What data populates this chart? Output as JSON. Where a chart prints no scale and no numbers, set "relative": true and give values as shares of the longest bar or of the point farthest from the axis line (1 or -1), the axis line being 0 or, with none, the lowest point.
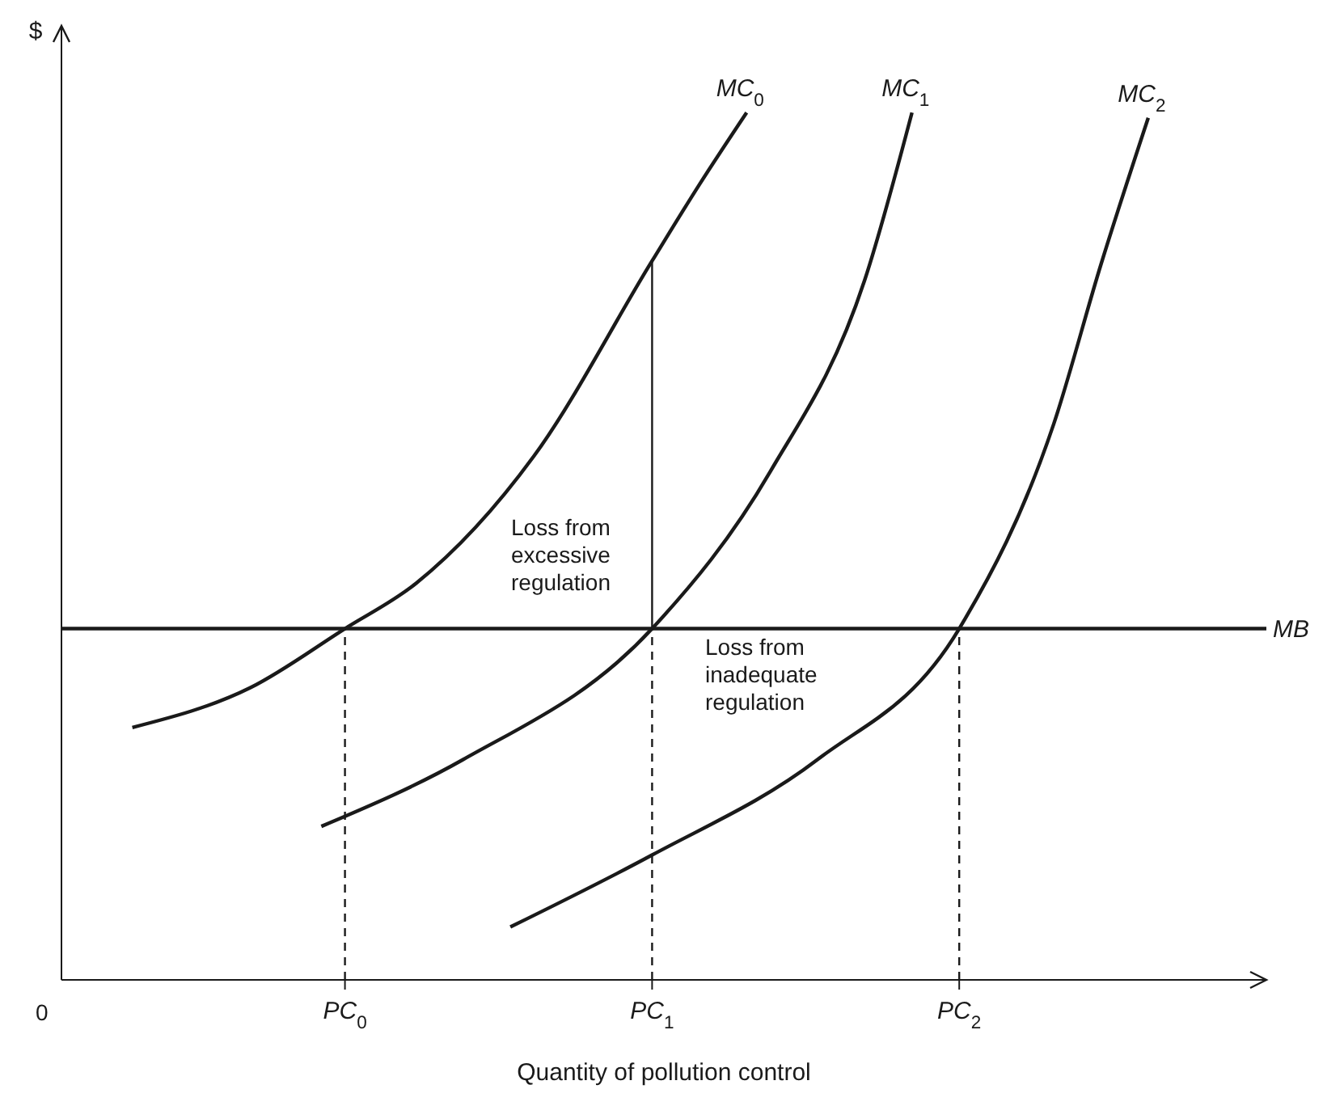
{
  "chart_data": {
    "type": "line",
    "relative": true,
    "xlabel": "Quantity of pollution control",
    "ylabel": "$",
    "marker": "none",
    "categories": [
      null,
      null,
      null,
      null,
      null,
      null,
      null,
      null,
      null,
      null,
      null,
      null,
      "PC$_{0}$",
      null,
      null,
      null,
      null,
      null,
      null,
      null,
      null,
      null,
      null,
      null,
      null,
      "PC$_{1}$",
      null,
      null,
      null,
      null,
      null,
      null,
      null,
      null,
      null,
      null,
      null,
      null,
      "PC$_{2}$",
      null,
      null,
      null,
      null,
      null,
      null,
      null,
      null,
      null,
      null,
      null,
      null,
      null
    ],
    "series": [
      {
        "name": "MC$_{0}$",
        "color": "#1a1a1a",
        "values": [
          null,
          null,
          null,
          0.291,
          null,
          null,
          null,
          null,
          0.337,
          null,
          null,
          null,
          0.405,
          null,
          null,
          0.457,
          null,
          null,
          null,
          null,
          0.604,
          null,
          null,
          null,
          null,
          0.829,
          null,
          0.917,
          null,
          1,
          null,
          null,
          null,
          null,
          null,
          null,
          null,
          null,
          null,
          null,
          null,
          null,
          null,
          null,
          null,
          null,
          null,
          null,
          null,
          null,
          null,
          null
        ]
      },
      {
        "name": "MC$_{1}$",
        "color": "#1a1a1a",
        "values": [
          null,
          null,
          null,
          null,
          null,
          null,
          null,
          null,
          null,
          null,
          null,
          0.177,
          null,
          null,
          null,
          null,
          null,
          0.254,
          null,
          null,
          null,
          null,
          null,
          null,
          null,
          0.405,
          null,
          null,
          null,
          null,
          0.586,
          null,
          null,
          null,
          0.807,
          null,
          1,
          null,
          null,
          null,
          null,
          null,
          null,
          null,
          null,
          null,
          null,
          null,
          null,
          null,
          null,
          null
        ]
      },
      {
        "name": "MC$_{2}$",
        "color": "#1a1a1a",
        "values": [
          null,
          null,
          null,
          null,
          null,
          null,
          null,
          null,
          null,
          null,
          null,
          null,
          null,
          null,
          null,
          null,
          null,
          null,
          null,
          0.061,
          null,
          null,
          null,
          null,
          null,
          0.144,
          null,
          null,
          null,
          null,
          null,
          null,
          0.254,
          null,
          null,
          null,
          null,
          null,
          0.405,
          null,
          null,
          null,
          0.641,
          null,
          0.825,
          null,
          0.994,
          null,
          null,
          null,
          null,
          null
        ]
      },
      {
        "name": "MB",
        "color": "#1a1a1a",
        "values": [
          0.405,
          null,
          null,
          null,
          null,
          null,
          null,
          null,
          null,
          null,
          null,
          null,
          null,
          null,
          null,
          null,
          null,
          null,
          null,
          null,
          null,
          null,
          null,
          null,
          null,
          null,
          null,
          null,
          null,
          null,
          null,
          null,
          null,
          null,
          null,
          null,
          null,
          null,
          null,
          null,
          null,
          null,
          null,
          null,
          null,
          null,
          null,
          null,
          null,
          null,
          null,
          0.405
        ]
      },
      {
        "color": "#1a1a1a",
        "line_style": "dashed",
        "x": [
          "PC$_{0}$",
          "PC$_{0}$"
        ],
        "values": [
          0,
          0.405
        ]
      },
      {
        "color": "#1a1a1a",
        "line_style": "dashed",
        "x": [
          "PC$_{1}$",
          "PC$_{1}$"
        ],
        "values": [
          0,
          0.405
        ]
      },
      {
        "color": "#1a1a1a",
        "line_style": "dashed",
        "x": [
          "PC$_{2}$",
          "PC$_{2}$"
        ],
        "values": [
          0,
          0.405
        ]
      },
      {
        "color": "#1a1a1a",
        "line_style": "solid",
        "x": [
          "PC$_{1}$",
          "PC$_{1}$"
        ],
        "values": [
          0.405,
          0.829
        ]
      }
    ],
    "annotations": [
      "Loss from excessive regulation",
      "Loss from inadequate regulation",
      "0"
    ]
  }
}
